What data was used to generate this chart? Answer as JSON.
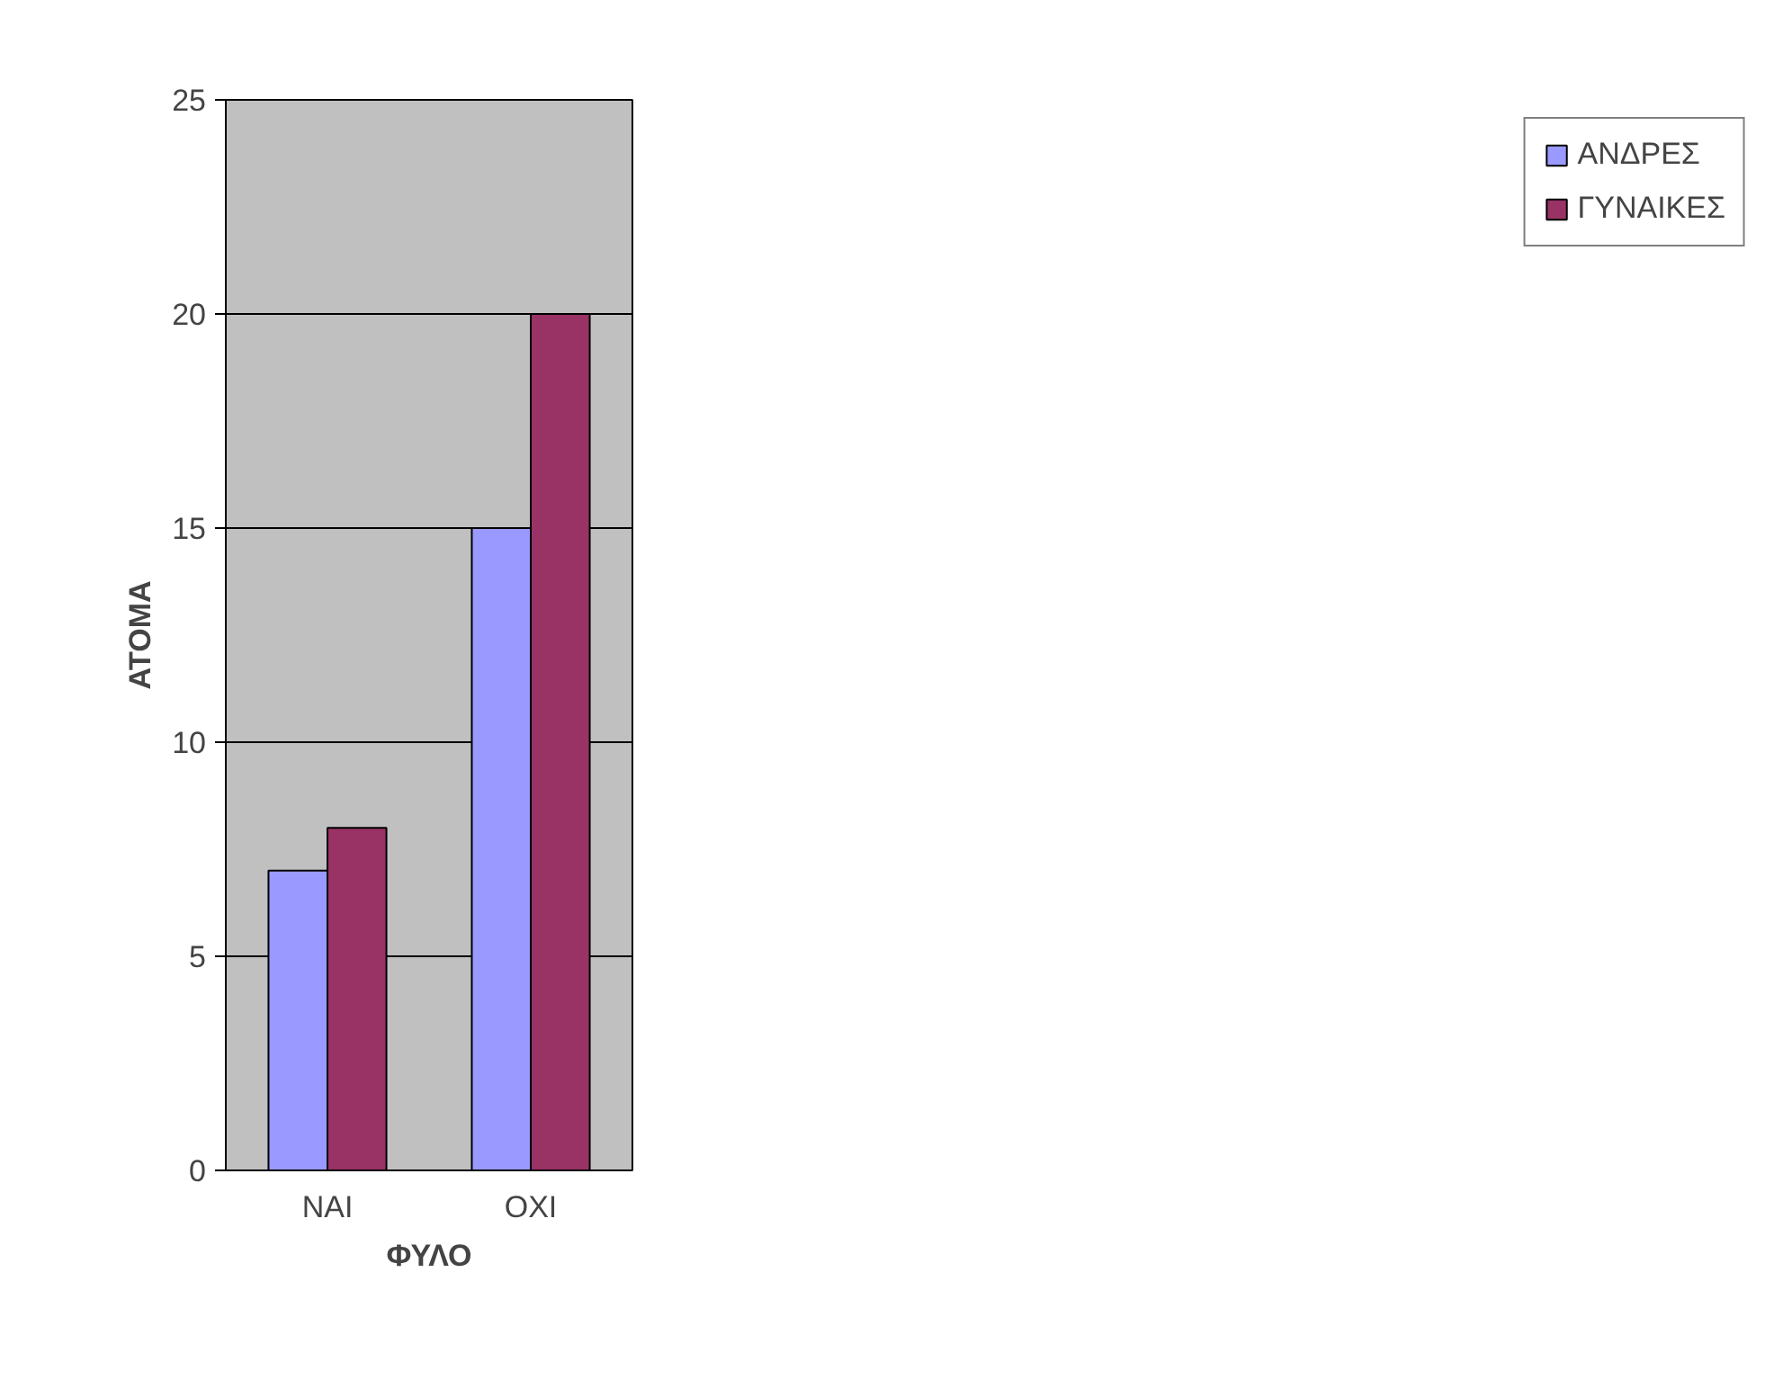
{
  "chart_data": {
    "type": "bar",
    "xlabel": "ΦΥΛΟ",
    "ylabel": "ΑΤΟΜΑ",
    "categories": [
      "ΝΑΙ",
      "ΟΧΙ"
    ],
    "series": [
      {
        "name": "ΑΝΔΡΕΣ",
        "color": "#9999ff",
        "values": [
          7,
          15
        ]
      },
      {
        "name": "ΓΥΝΑΙΚΕΣ",
        "color": "#993366",
        "values": [
          8,
          20
        ]
      }
    ],
    "ylim": [
      0,
      25
    ],
    "yticks": [
      0,
      5,
      10,
      15,
      20,
      25
    ],
    "grid": "y",
    "legend": "right"
  }
}
